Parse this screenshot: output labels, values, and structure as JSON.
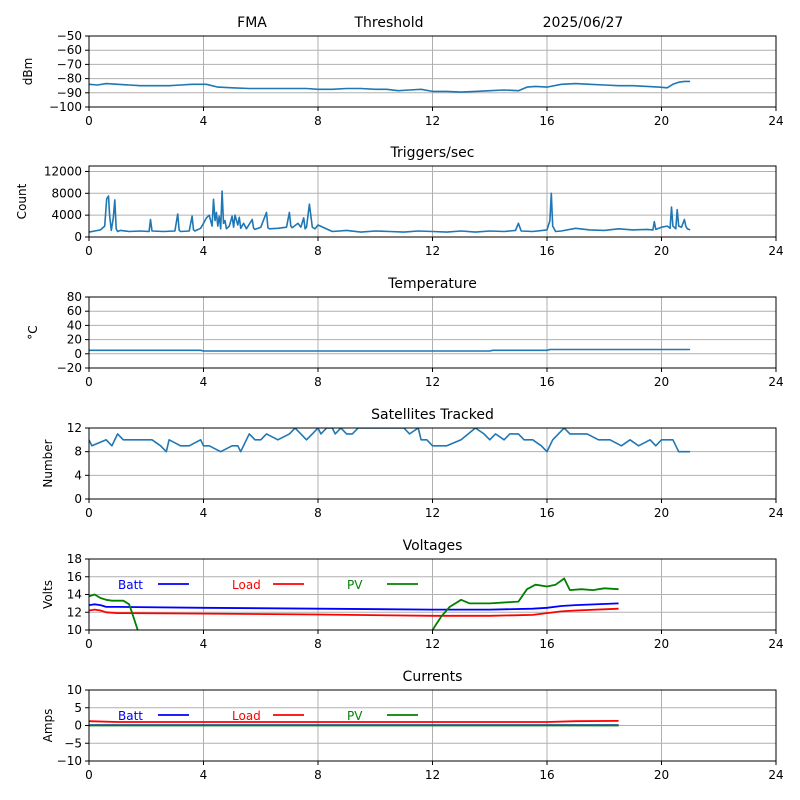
{
  "header": {
    "site": "FMA",
    "mode": "Threshold",
    "date": "2025/06/27"
  },
  "colors": {
    "series": "#1f77b4",
    "batt": "#0000ff",
    "load": "#ff0000",
    "pv": "#008000",
    "grid": "#b0b0b0"
  },
  "chart_data": [
    {
      "type": "line",
      "title": "",
      "ylabel": "dBm",
      "xlim": [
        0,
        24
      ],
      "ylim": [
        -100,
        -50
      ],
      "xticks": [
        0,
        4,
        8,
        12,
        16,
        20,
        24
      ],
      "yticks": [
        -100,
        -90,
        -80,
        -70,
        -60,
        -50
      ],
      "ytick_labels": [
        "−100",
        "−90",
        "−80",
        "−70",
        "−60",
        "−50"
      ],
      "grid": true,
      "series": [
        {
          "x": [
            0,
            0.3,
            0.6,
            1.0,
            1.4,
            1.8,
            2.3,
            2.8,
            3.2,
            3.6,
            3.9,
            4.1,
            4.5,
            5.0,
            5.6,
            6.2,
            7.0,
            7.6,
            8.0,
            8.5,
            9.0,
            9.5,
            10.0,
            10.4,
            10.8,
            11.2,
            11.6,
            12.0,
            12.5,
            13.0,
            13.5,
            14.0,
            14.5,
            15.0,
            15.3,
            15.6,
            16.0,
            16.5,
            17.0,
            17.5,
            18.0,
            18.5,
            19.0,
            19.5,
            19.9,
            20.2,
            20.4,
            20.6,
            20.8,
            21.0
          ],
          "y": [
            -84,
            -84.5,
            -83.5,
            -84,
            -84.5,
            -85,
            -85,
            -85,
            -84.5,
            -84,
            -84,
            -84,
            -86,
            -86.5,
            -87,
            -87,
            -87,
            -87,
            -87.5,
            -87.5,
            -87,
            -87,
            -87.5,
            -87.5,
            -88.5,
            -88,
            -87.5,
            -89,
            -89,
            -89.5,
            -89,
            -88.5,
            -88,
            -88.5,
            -86,
            -85.5,
            -86,
            -84,
            -83.5,
            -84,
            -84.5,
            -85,
            -85,
            -85.5,
            -86,
            -86.5,
            -84,
            -82.5,
            -82,
            -82
          ]
        }
      ]
    },
    {
      "type": "line",
      "title": "Triggers/sec",
      "ylabel": "Count",
      "xlim": [
        0,
        24
      ],
      "ylim": [
        0,
        13000
      ],
      "xticks": [
        0,
        4,
        8,
        12,
        16,
        20,
        24
      ],
      "yticks": [
        0,
        4000,
        8000,
        12000
      ],
      "ytick_labels": [
        "0",
        "4000",
        "8000",
        "12000"
      ],
      "grid": true,
      "series": [
        {
          "x": [
            0,
            0.2,
            0.4,
            0.55,
            0.62,
            0.68,
            0.72,
            0.78,
            0.85,
            0.9,
            0.95,
            1.0,
            1.1,
            1.4,
            1.8,
            2.1,
            2.15,
            2.2,
            2.6,
            3.0,
            3.1,
            3.15,
            3.2,
            3.5,
            3.6,
            3.65,
            3.7,
            3.9,
            4.0,
            4.1,
            4.2,
            4.3,
            4.35,
            4.4,
            4.45,
            4.5,
            4.55,
            4.6,
            4.65,
            4.7,
            4.75,
            4.8,
            4.9,
            5.0,
            5.05,
            5.1,
            5.2,
            5.25,
            5.3,
            5.4,
            5.5,
            5.7,
            5.75,
            5.8,
            6.0,
            6.2,
            6.25,
            6.3,
            6.6,
            6.9,
            7.0,
            7.05,
            7.1,
            7.3,
            7.4,
            7.5,
            7.55,
            7.6,
            7.7,
            7.8,
            7.9,
            8.0,
            8.5,
            9.0,
            9.5,
            10.0,
            10.5,
            11.0,
            11.5,
            12.0,
            12.5,
            13.0,
            13.5,
            14.0,
            14.5,
            14.9,
            15.0,
            15.1,
            15.5,
            16.0,
            16.1,
            16.15,
            16.2,
            16.3,
            16.5,
            17.0,
            17.5,
            18.0,
            18.5,
            19.0,
            19.5,
            19.7,
            19.75,
            19.8,
            20.0,
            20.2,
            20.3,
            20.35,
            20.4,
            20.5,
            20.55,
            20.6,
            20.7,
            20.8,
            20.85,
            20.9,
            21.0
          ],
          "y": [
            900,
            1100,
            1300,
            2000,
            7000,
            7500,
            4000,
            1200,
            3500,
            6800,
            1500,
            1000,
            1200,
            1000,
            1100,
            1000,
            3200,
            1100,
            1000,
            1100,
            4200,
            1200,
            1000,
            1100,
            3800,
            1300,
            1100,
            1600,
            2500,
            3500,
            4000,
            2000,
            6900,
            3000,
            4500,
            2000,
            3800,
            1500,
            8400,
            2500,
            3000,
            1500,
            2000,
            3800,
            1800,
            4000,
            2200,
            3600,
            1600,
            2500,
            1500,
            3200,
            1600,
            1400,
            1800,
            4500,
            1700,
            1500,
            1600,
            1800,
            4500,
            2000,
            1700,
            2500,
            1800,
            3500,
            1500,
            1800,
            6000,
            1800,
            1500,
            2200,
            1000,
            1200,
            900,
            1100,
            1000,
            900,
            1100,
            1000,
            900,
            1100,
            900,
            1100,
            1000,
            1200,
            2500,
            1100,
            1000,
            1300,
            3000,
            8000,
            2000,
            1000,
            1100,
            1600,
            1300,
            1200,
            1500,
            1300,
            1400,
            1300,
            2800,
            1400,
            1800,
            2000,
            1600,
            5500,
            2000,
            1500,
            5000,
            2000,
            1800,
            3200,
            2000,
            1500,
            1300
          ]
        }
      ]
    },
    {
      "type": "line",
      "title": "Temperature",
      "ylabel": "°C",
      "xlim": [
        0,
        24
      ],
      "ylim": [
        -20,
        80
      ],
      "xticks": [
        0,
        4,
        8,
        12,
        16,
        20,
        24
      ],
      "yticks": [
        -20,
        0,
        20,
        40,
        60,
        80
      ],
      "ytick_labels": [
        "−20",
        "0",
        "20",
        "40",
        "60",
        "80"
      ],
      "grid": true,
      "series": [
        {
          "x": [
            0,
            3.9,
            4.0,
            6.0,
            8.0,
            10.0,
            12.0,
            14.0,
            14.1,
            16.0,
            16.1,
            18.0,
            21.0
          ],
          "y": [
            5,
            5,
            4,
            4,
            4,
            4,
            4,
            4,
            5,
            5,
            6,
            6,
            6
          ]
        }
      ]
    },
    {
      "type": "line",
      "title": "Satellites Tracked",
      "ylabel": "Number",
      "xlim": [
        0,
        24
      ],
      "ylim": [
        0,
        12
      ],
      "xticks": [
        0,
        4,
        8,
        12,
        16,
        20,
        24
      ],
      "yticks": [
        0,
        4,
        8,
        12
      ],
      "ytick_labels": [
        "0",
        "4",
        "8",
        "12"
      ],
      "grid": true,
      "series": [
        {
          "x": [
            0,
            0.1,
            0.6,
            0.8,
            1.0,
            1.2,
            1.6,
            2.2,
            2.5,
            2.7,
            2.8,
            3.2,
            3.5,
            3.9,
            4.0,
            4.1,
            4.2,
            4.6,
            5.0,
            5.2,
            5.3,
            5.5,
            5.6,
            5.8,
            6.0,
            6.2,
            6.6,
            7.0,
            7.2,
            7.6,
            7.8,
            8.0,
            8.1,
            8.3,
            8.5,
            8.6,
            8.8,
            9.0,
            9.2,
            9.4,
            9.6,
            10.0,
            10.5,
            11.0,
            11.2,
            11.5,
            11.6,
            11.8,
            12.0,
            12.5,
            13.0,
            13.5,
            13.8,
            14.0,
            14.2,
            14.5,
            14.7,
            15.0,
            15.2,
            15.5,
            15.8,
            16.0,
            16.2,
            16.4,
            16.6,
            16.8,
            17.0,
            17.4,
            17.8,
            18.2,
            18.6,
            18.9,
            19.2,
            19.6,
            19.8,
            20.0,
            20.4,
            20.6,
            21.0
          ],
          "y": [
            10,
            9,
            10,
            9,
            11,
            10,
            10,
            10,
            9,
            8,
            10,
            9,
            9,
            10,
            9,
            9,
            9,
            8,
            9,
            9,
            8,
            10,
            11,
            10,
            10,
            11,
            10,
            11,
            12,
            10,
            11,
            12,
            11,
            12,
            12,
            11,
            12,
            11,
            11,
            12,
            12,
            12,
            12,
            12,
            11,
            12,
            10,
            10,
            9,
            9,
            10,
            12,
            11,
            10,
            11,
            10,
            11,
            11,
            10,
            10,
            9,
            8,
            10,
            11,
            12,
            11,
            11,
            11,
            10,
            10,
            9,
            10,
            9,
            10,
            9,
            10,
            10,
            8,
            8
          ]
        }
      ]
    },
    {
      "type": "line",
      "title": "Voltages",
      "ylabel": "Volts",
      "xlim": [
        0,
        24
      ],
      "ylim": [
        10,
        18
      ],
      "xticks": [
        0,
        4,
        8,
        12,
        16,
        20,
        24
      ],
      "yticks": [
        10,
        12,
        14,
        16,
        18
      ],
      "ytick_labels": [
        "10",
        "12",
        "14",
        "16",
        "18"
      ],
      "grid": true,
      "legend": "top-left",
      "series": [
        {
          "name": "Batt",
          "x": [
            0,
            0.2,
            0.4,
            0.6,
            1.0,
            4.0,
            8.0,
            12.0,
            14.0,
            15.5,
            16.0,
            16.5,
            17.0,
            18.5
          ],
          "y": [
            12.8,
            12.9,
            12.8,
            12.6,
            12.6,
            12.5,
            12.4,
            12.3,
            12.3,
            12.4,
            12.5,
            12.7,
            12.8,
            13.0
          ]
        },
        {
          "name": "Load",
          "x": [
            0,
            0.2,
            0.4,
            0.6,
            1.0,
            4.0,
            8.0,
            12.0,
            14.0,
            15.5,
            16.0,
            16.5,
            17.0,
            18.5
          ],
          "y": [
            12.2,
            12.3,
            12.2,
            12.0,
            11.9,
            11.85,
            11.75,
            11.6,
            11.6,
            11.7,
            11.9,
            12.1,
            12.2,
            12.4
          ],
          "color_key": "load"
        },
        {
          "name": "PV",
          "segments": [
            {
              "x": [
                0,
                0.2,
                0.4,
                0.6,
                0.8,
                1.0,
                1.2,
                1.4,
                1.5,
                1.6,
                1.7
              ],
              "y": [
                13.8,
                14.0,
                13.6,
                13.4,
                13.3,
                13.3,
                13.3,
                12.9,
                12.0,
                11.0,
                10.0
              ]
            },
            {
              "x": [
                12.0,
                12.3,
                12.6,
                13.0,
                13.3,
                14.0,
                15.0,
                15.3,
                15.6,
                16.0,
                16.3,
                16.6,
                16.8,
                17.2,
                17.6,
                18.0,
                18.5
              ],
              "y": [
                10.0,
                11.5,
                12.6,
                13.4,
                13.0,
                13.0,
                13.2,
                14.6,
                15.1,
                14.9,
                15.1,
                15.8,
                14.5,
                14.6,
                14.5,
                14.7,
                14.6
              ]
            }
          ]
        }
      ]
    },
    {
      "type": "line",
      "title": "Currents",
      "ylabel": "Amps",
      "xlim": [
        0,
        24
      ],
      "ylim": [
        -10,
        10
      ],
      "xticks": [
        0,
        4,
        8,
        12,
        16,
        20,
        24
      ],
      "yticks": [
        -10,
        -5,
        0,
        5,
        10
      ],
      "ytick_labels": [
        "−10",
        "−5",
        "0",
        "5",
        "10"
      ],
      "grid": true,
      "legend": "top-left",
      "series": [
        {
          "name": "Batt",
          "x": [
            0,
            18.5
          ],
          "y": [
            0.1,
            0.1
          ]
        },
        {
          "name": "Load",
          "x": [
            0,
            1.0,
            16.0,
            17.0,
            18.5
          ],
          "y": [
            1.2,
            1.0,
            1.0,
            1.2,
            1.3
          ]
        },
        {
          "name": "PV",
          "x": [
            0,
            18.5
          ],
          "y": [
            0,
            0
          ]
        }
      ]
    }
  ]
}
